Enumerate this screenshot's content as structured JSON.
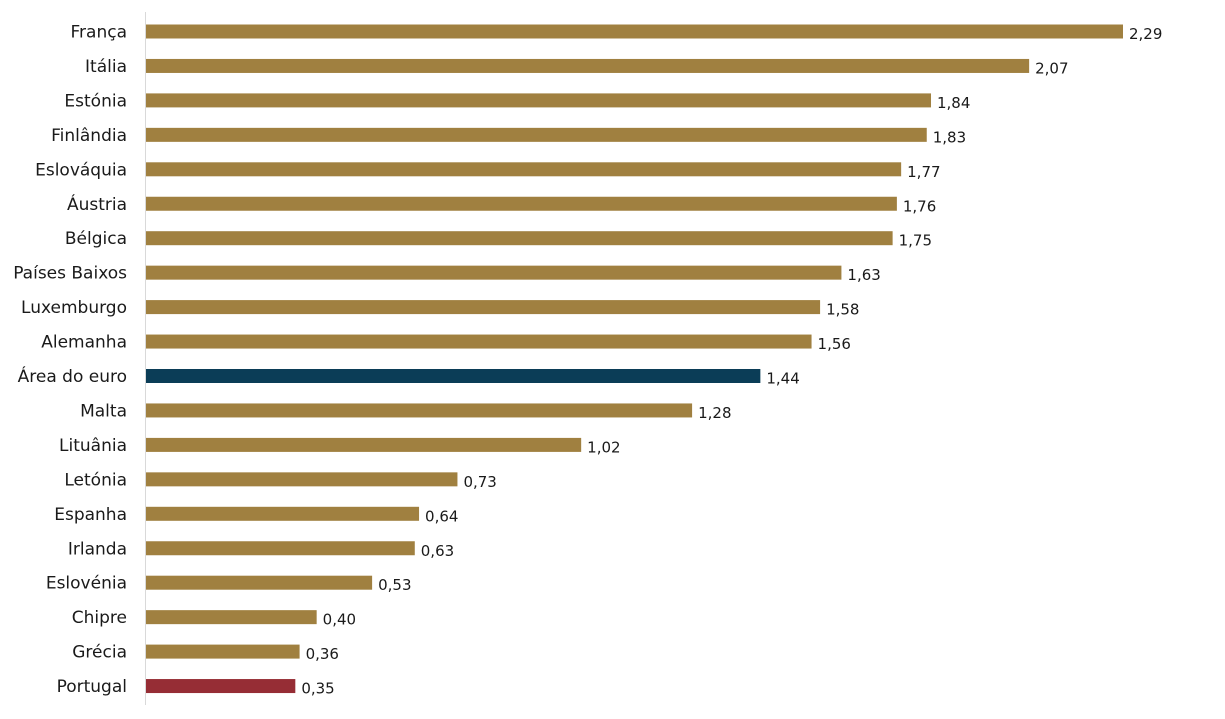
{
  "chart_data": {
    "type": "bar",
    "orientation": "horizontal",
    "categories": [
      "França",
      "Itália",
      "Estónia",
      "Finlândia",
      "Eslováquia",
      "Áustria",
      "Bélgica",
      "Países Baixos",
      "Luxemburgo",
      "Alemanha",
      "Área do euro",
      "Malta",
      "Lituânia",
      "Letónia",
      "Espanha",
      "Irlanda",
      "Eslovénia",
      "Chipre",
      "Grécia",
      "Portugal"
    ],
    "values": [
      2.29,
      2.07,
      1.84,
      1.83,
      1.77,
      1.76,
      1.75,
      1.63,
      1.58,
      1.56,
      1.44,
      1.28,
      1.02,
      0.73,
      0.64,
      0.63,
      0.53,
      0.4,
      0.36,
      0.35
    ],
    "value_labels": [
      "2,29",
      "2,07",
      "1,84",
      "1,83",
      "1,77",
      "1,76",
      "1,75",
      "1,63",
      "1,58",
      "1,56",
      "1,44",
      "1,28",
      "1,02",
      "0,73",
      "0,64",
      "0,63",
      "0,53",
      "0,40",
      "0,36",
      "0,35"
    ],
    "title": "",
    "xlabel": "",
    "ylabel": "",
    "xlim": [
      0,
      2.5
    ],
    "grid": false,
    "legend": "none",
    "colors": {
      "default": "#a08040",
      "highlight_euro_area": "#0b3d57",
      "highlight_portugal": "#962d35"
    },
    "highlights": {
      "Área do euro": "highlight_euro_area",
      "Portugal": "highlight_portugal"
    }
  }
}
